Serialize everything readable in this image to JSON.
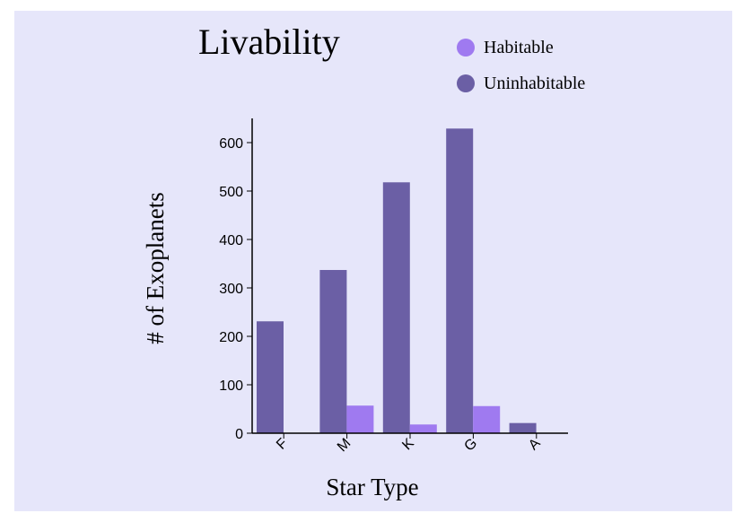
{
  "chart_data": {
    "type": "bar",
    "title": "Livability",
    "xlabel": "Star Type",
    "ylabel": "# of Exoplanets",
    "categories": [
      "F",
      "M",
      "K",
      "G",
      "A"
    ],
    "series": [
      {
        "name": "Uninhabitable",
        "color": "#6b5fa5",
        "values": [
          231,
          337,
          518,
          629,
          21
        ]
      },
      {
        "name": "Habitable",
        "color": "#9f7af0",
        "values": [
          0,
          57,
          18,
          56,
          0
        ]
      }
    ],
    "legend": [
      {
        "label": "Habitable",
        "color": "#9f7af0"
      },
      {
        "label": "Uninhabitable",
        "color": "#6b5fa5"
      }
    ],
    "legend_position": "top-right",
    "ylim": [
      0,
      650
    ],
    "yticks": [
      0,
      100,
      200,
      300,
      400,
      500,
      600
    ],
    "grid": false
  }
}
